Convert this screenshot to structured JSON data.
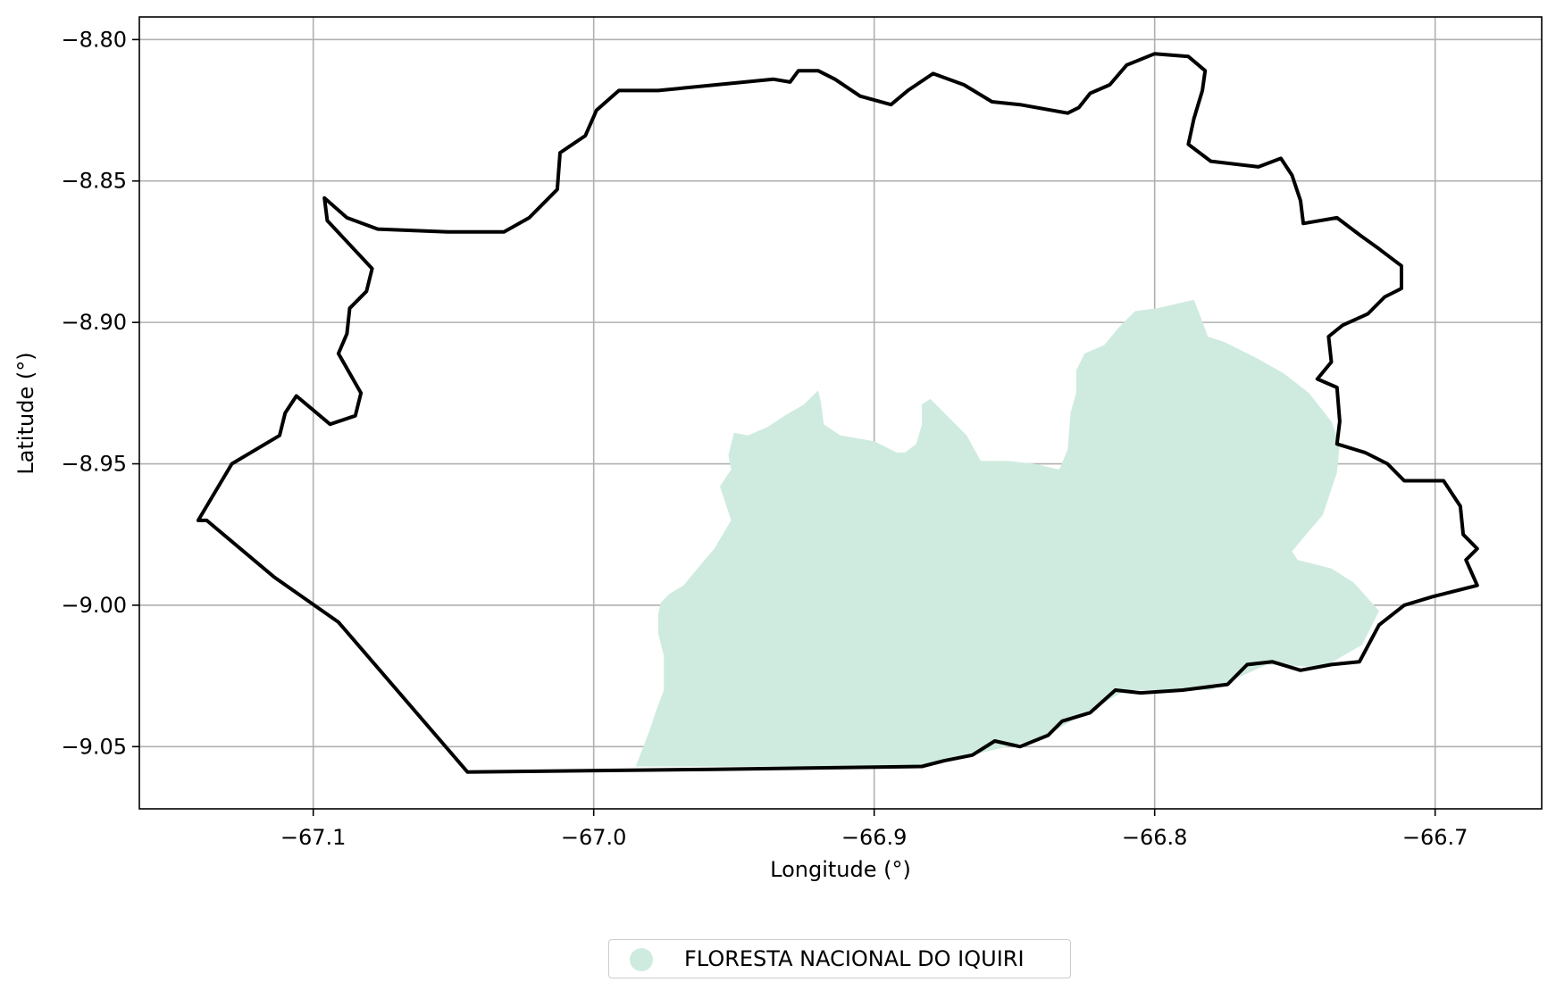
{
  "chart_data": {
    "type": "map",
    "xlabel": "Longitude (°)",
    "ylabel": "Latitude (°)",
    "xlim": [
      -67.162,
      -66.662
    ],
    "ylim": [
      -9.072,
      -8.792
    ],
    "x_ticks": [
      -67.1,
      -67.0,
      -66.9,
      -66.8,
      -66.7
    ],
    "x_tick_labels": [
      "−67.1",
      "−67.0",
      "−66.9",
      "−66.8",
      "−66.7"
    ],
    "y_ticks": [
      -8.8,
      -8.85,
      -8.9,
      -8.95,
      -9.0,
      -9.05
    ],
    "y_tick_labels": [
      "−8.80",
      "−8.85",
      "−8.90",
      "−8.95",
      "−9.00",
      "−9.05"
    ],
    "grid": true,
    "legend_position": "bottom-center",
    "layers": [
      {
        "name": "boundary",
        "kind": "outline",
        "color": "#000000",
        "coords": [
          [
            -67.141,
            -8.97
          ],
          [
            -67.129,
            -8.95
          ],
          [
            -67.112,
            -8.94
          ],
          [
            -67.11,
            -8.932
          ],
          [
            -67.106,
            -8.926
          ],
          [
            -67.094,
            -8.936
          ],
          [
            -67.085,
            -8.933
          ],
          [
            -67.083,
            -8.925
          ],
          [
            -67.091,
            -8.911
          ],
          [
            -67.088,
            -8.904
          ],
          [
            -67.087,
            -8.895
          ],
          [
            -67.081,
            -8.889
          ],
          [
            -67.079,
            -8.881
          ],
          [
            -67.095,
            -8.864
          ],
          [
            -67.096,
            -8.856
          ],
          [
            -67.088,
            -8.863
          ],
          [
            -67.077,
            -8.867
          ],
          [
            -67.052,
            -8.868
          ],
          [
            -67.032,
            -8.868
          ],
          [
            -67.023,
            -8.863
          ],
          [
            -67.013,
            -8.853
          ],
          [
            -67.012,
            -8.84
          ],
          [
            -67.003,
            -8.834
          ],
          [
            -66.999,
            -8.825
          ],
          [
            -66.991,
            -8.818
          ],
          [
            -66.977,
            -8.818
          ],
          [
            -66.936,
            -8.814
          ],
          [
            -66.93,
            -8.815
          ],
          [
            -66.927,
            -8.811
          ],
          [
            -66.92,
            -8.811
          ],
          [
            -66.914,
            -8.814
          ],
          [
            -66.905,
            -8.82
          ],
          [
            -66.894,
            -8.823
          ],
          [
            -66.888,
            -8.818
          ],
          [
            -66.879,
            -8.812
          ],
          [
            -66.868,
            -8.816
          ],
          [
            -66.858,
            -8.822
          ],
          [
            -66.848,
            -8.823
          ],
          [
            -66.831,
            -8.826
          ],
          [
            -66.827,
            -8.824
          ],
          [
            -66.823,
            -8.819
          ],
          [
            -66.816,
            -8.816
          ],
          [
            -66.81,
            -8.809
          ],
          [
            -66.8,
            -8.805
          ],
          [
            -66.788,
            -8.806
          ],
          [
            -66.782,
            -8.811
          ],
          [
            -66.783,
            -8.818
          ],
          [
            -66.786,
            -8.828
          ],
          [
            -66.788,
            -8.837
          ],
          [
            -66.78,
            -8.843
          ],
          [
            -66.763,
            -8.845
          ],
          [
            -66.755,
            -8.842
          ],
          [
            -66.751,
            -8.848
          ],
          [
            -66.748,
            -8.857
          ],
          [
            -66.747,
            -8.865
          ],
          [
            -66.735,
            -8.863
          ],
          [
            -66.727,
            -8.869
          ],
          [
            -66.72,
            -8.874
          ],
          [
            -66.712,
            -8.88
          ],
          [
            -66.712,
            -8.888
          ],
          [
            -66.718,
            -8.891
          ],
          [
            -66.724,
            -8.897
          ],
          [
            -66.733,
            -8.901
          ],
          [
            -66.738,
            -8.905
          ],
          [
            -66.737,
            -8.914
          ],
          [
            -66.742,
            -8.92
          ],
          [
            -66.735,
            -8.923
          ],
          [
            -66.734,
            -8.935
          ],
          [
            -66.735,
            -8.943
          ],
          [
            -66.725,
            -8.946
          ],
          [
            -66.717,
            -8.95
          ],
          [
            -66.711,
            -8.956
          ],
          [
            -66.697,
            -8.956
          ],
          [
            -66.691,
            -8.965
          ],
          [
            -66.69,
            -8.975
          ],
          [
            -66.685,
            -8.98
          ],
          [
            -66.689,
            -8.984
          ],
          [
            -66.685,
            -8.993
          ],
          [
            -66.701,
            -8.997
          ],
          [
            -66.711,
            -9.0
          ],
          [
            -66.72,
            -9.007
          ],
          [
            -66.727,
            -9.02
          ],
          [
            -66.737,
            -9.021
          ],
          [
            -66.748,
            -9.023
          ],
          [
            -66.758,
            -9.02
          ],
          [
            -66.767,
            -9.021
          ],
          [
            -66.774,
            -9.028
          ],
          [
            -66.79,
            -9.03
          ],
          [
            -66.805,
            -9.031
          ],
          [
            -66.814,
            -9.03
          ],
          [
            -66.823,
            -9.038
          ],
          [
            -66.833,
            -9.041
          ],
          [
            -66.838,
            -9.046
          ],
          [
            -66.848,
            -9.05
          ],
          [
            -66.857,
            -9.048
          ],
          [
            -66.865,
            -9.053
          ],
          [
            -66.875,
            -9.055
          ],
          [
            -66.883,
            -9.057
          ],
          [
            -66.957,
            -9.058
          ],
          [
            -67.045,
            -9.059
          ],
          [
            -67.091,
            -9.006
          ],
          [
            -67.114,
            -8.99
          ],
          [
            -67.138,
            -8.97
          ],
          [
            -67.141,
            -8.97
          ]
        ]
      },
      {
        "name": "FLORESTA NACIONAL DO IQUIRI",
        "kind": "fill",
        "color": "#cfebdf",
        "coords": [
          [
            -66.985,
            -9.057
          ],
          [
            -66.98,
            -9.044
          ],
          [
            -66.978,
            -9.038
          ],
          [
            -66.975,
            -9.03
          ],
          [
            -66.975,
            -9.018
          ],
          [
            -66.977,
            -9.01
          ],
          [
            -66.977,
            -9.003
          ],
          [
            -66.976,
            -8.999
          ],
          [
            -66.973,
            -8.996
          ],
          [
            -66.968,
            -8.993
          ],
          [
            -66.963,
            -8.987
          ],
          [
            -66.957,
            -8.98
          ],
          [
            -66.951,
            -8.97
          ],
          [
            -66.953,
            -8.964
          ],
          [
            -66.955,
            -8.958
          ],
          [
            -66.951,
            -8.952
          ],
          [
            -66.952,
            -8.947
          ],
          [
            -66.95,
            -8.939
          ],
          [
            -66.945,
            -8.94
          ],
          [
            -66.938,
            -8.937
          ],
          [
            -66.932,
            -8.933
          ],
          [
            -66.925,
            -8.929
          ],
          [
            -66.92,
            -8.924
          ],
          [
            -66.919,
            -8.928
          ],
          [
            -66.918,
            -8.936
          ],
          [
            -66.912,
            -8.94
          ],
          [
            -66.9,
            -8.942
          ],
          [
            -66.892,
            -8.946
          ],
          [
            -66.889,
            -8.946
          ],
          [
            -66.885,
            -8.943
          ],
          [
            -66.883,
            -8.936
          ],
          [
            -66.883,
            -8.929
          ],
          [
            -66.88,
            -8.927
          ],
          [
            -66.867,
            -8.94
          ],
          [
            -66.862,
            -8.949
          ],
          [
            -66.852,
            -8.949
          ],
          [
            -66.843,
            -8.95
          ],
          [
            -66.834,
            -8.952
          ],
          [
            -66.831,
            -8.945
          ],
          [
            -66.83,
            -8.932
          ],
          [
            -66.828,
            -8.925
          ],
          [
            -66.828,
            -8.917
          ],
          [
            -66.825,
            -8.911
          ],
          [
            -66.818,
            -8.908
          ],
          [
            -66.813,
            -8.902
          ],
          [
            -66.807,
            -8.896
          ],
          [
            -66.799,
            -8.895
          ],
          [
            -66.786,
            -8.892
          ],
          [
            -66.784,
            -8.897
          ],
          [
            -66.781,
            -8.905
          ],
          [
            -66.775,
            -8.907
          ],
          [
            -66.763,
            -8.913
          ],
          [
            -66.754,
            -8.918
          ],
          [
            -66.745,
            -8.925
          ],
          [
            -66.737,
            -8.935
          ],
          [
            -66.734,
            -8.943
          ],
          [
            -66.735,
            -8.953
          ],
          [
            -66.738,
            -8.962
          ],
          [
            -66.74,
            -8.968
          ],
          [
            -66.746,
            -8.975
          ],
          [
            -66.751,
            -8.981
          ],
          [
            -66.749,
            -8.984
          ],
          [
            -66.737,
            -8.987
          ],
          [
            -66.729,
            -8.992
          ],
          [
            -66.72,
            -9.002
          ],
          [
            -66.726,
            -9.014
          ],
          [
            -66.74,
            -9.022
          ],
          [
            -66.76,
            -9.021
          ],
          [
            -66.78,
            -9.03
          ],
          [
            -66.81,
            -9.03
          ],
          [
            -66.823,
            -9.037
          ],
          [
            -66.84,
            -9.047
          ],
          [
            -66.865,
            -9.053
          ],
          [
            -66.875,
            -9.055
          ],
          [
            -66.883,
            -9.057
          ]
        ]
      }
    ]
  },
  "legend": {
    "label": "FLORESTA NACIONAL DO IQUIRI",
    "color": "#cfebdf"
  }
}
